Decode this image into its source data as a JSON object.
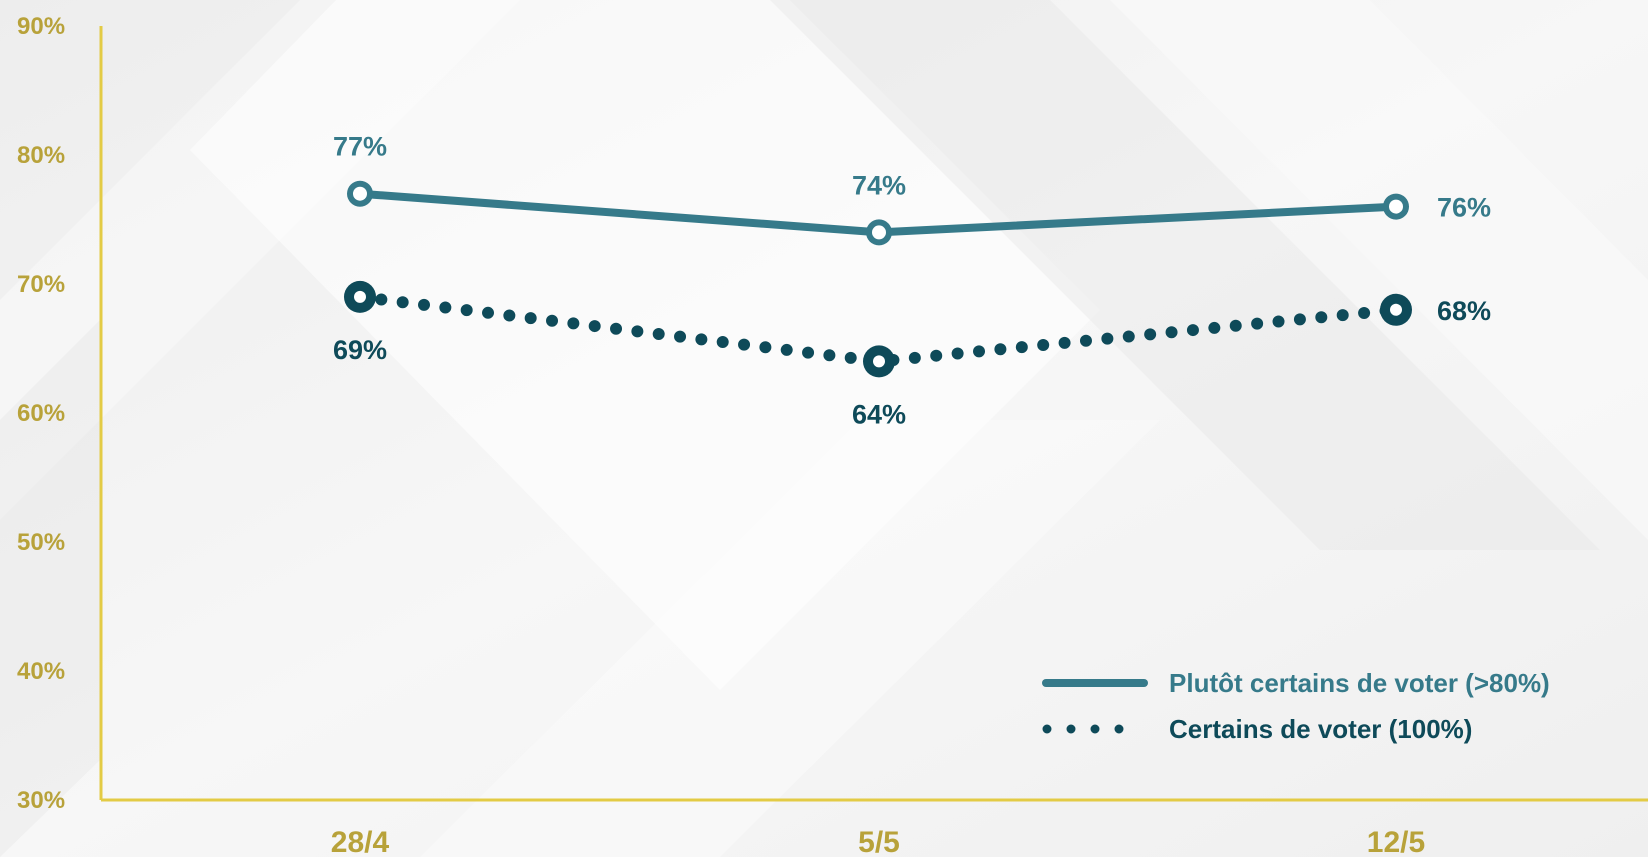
{
  "colors": {
    "axis": "#E3CB45",
    "axis_text": "#B8A23A",
    "series_likely": "#367A8A",
    "series_certain": "#0E4A59",
    "background": "#F2F2F2"
  },
  "chart_data": {
    "type": "line",
    "categories": [
      "28/4",
      "5/5",
      "12/5"
    ],
    "ylim": [
      30,
      90
    ],
    "yticks": [
      "30%",
      "40%",
      "50%",
      "60%",
      "70%",
      "80%",
      "90%"
    ],
    "ytick_values": [
      30,
      40,
      50,
      60,
      70,
      80,
      90
    ],
    "grid": false,
    "legend_position": "bottom-right",
    "series": [
      {
        "name": "Plutôt certains de voter (>80%)",
        "values": [
          77,
          74,
          76
        ],
        "labels": [
          "77%",
          "74%",
          "76%"
        ],
        "line_style": "solid"
      },
      {
        "name": "Certains de voter (100%)",
        "values": [
          69,
          64,
          68
        ],
        "labels": [
          "69%",
          "64%",
          "68%"
        ],
        "line_style": "dotted"
      }
    ]
  }
}
